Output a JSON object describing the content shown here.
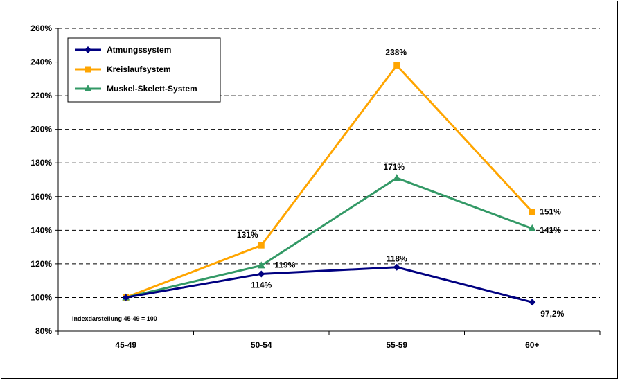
{
  "chart_data": {
    "type": "line",
    "categories": [
      "45-49",
      "50-54",
      "55-59",
      "60+"
    ],
    "ylim": [
      80,
      260
    ],
    "yticks": [
      80,
      100,
      120,
      140,
      160,
      180,
      200,
      220,
      240,
      260
    ],
    "ytick_labels": [
      "80%",
      "100%",
      "120%",
      "140%",
      "160%",
      "180%",
      "200%",
      "220%",
      "240%",
      "260%"
    ],
    "grid": true,
    "legend_position": "top-left",
    "note": "Indexdarstellung 45-49 = 100",
    "series": [
      {
        "name": "Atmungssystem",
        "values": [
          100,
          114,
          118,
          97.2
        ],
        "labels": [
          "",
          "114%",
          "118%",
          "97,2%"
        ],
        "color": "#000080",
        "marker": "diamond"
      },
      {
        "name": "Kreislaufsystem",
        "values": [
          100,
          131,
          238,
          151
        ],
        "labels": [
          "",
          "131%",
          "238%",
          "151%"
        ],
        "color": "#FFA500",
        "marker": "square"
      },
      {
        "name": "Muskel-Skelett-System",
        "values": [
          100,
          119,
          171,
          141
        ],
        "labels": [
          "",
          "119%",
          "171%",
          "141%"
        ],
        "color": "#339966",
        "marker": "triangle"
      }
    ]
  }
}
